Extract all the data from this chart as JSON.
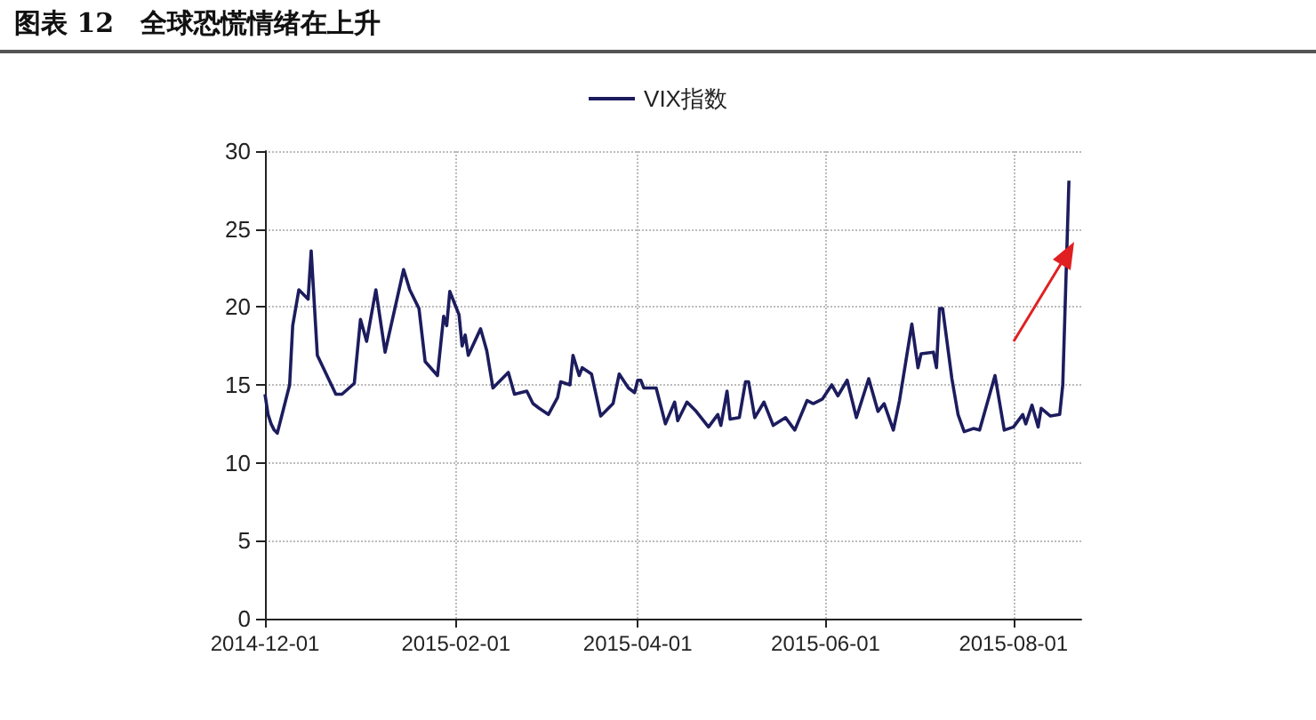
{
  "chart_data": {
    "type": "line",
    "title": "图表 12　全球恐慌情绪在上升",
    "legend": "top",
    "grid": true,
    "marker": "none",
    "line_style": "solid",
    "xlim": [
      "2014-12-01",
      "2015-08-23"
    ],
    "xticks": [
      {
        "value": "2014-12-01",
        "label": "2014-12-01"
      },
      {
        "value": "2015-02-01",
        "label": "2015-02-01"
      },
      {
        "value": "2015-04-01",
        "label": "2015-04-01"
      },
      {
        "value": "2015-06-01",
        "label": "2015-06-01"
      },
      {
        "value": "2015-08-01",
        "label": "2015-08-01"
      }
    ],
    "ylim": [
      0,
      30
    ],
    "yticks": [
      0,
      5,
      10,
      15,
      20,
      25,
      30
    ],
    "x": [
      "2014-12-01",
      "2014-12-02",
      "2014-12-03",
      "2014-12-04",
      "2014-12-05",
      "2014-12-09",
      "2014-12-10",
      "2014-12-12",
      "2014-12-15",
      "2014-12-16",
      "2014-12-18",
      "2014-12-24",
      "2014-12-26",
      "2014-12-30",
      "2015-01-01",
      "2015-01-03",
      "2015-01-06",
      "2015-01-09",
      "2015-01-15",
      "2015-01-17",
      "2015-01-20",
      "2015-01-22",
      "2015-01-26",
      "2015-01-28",
      "2015-01-29",
      "2015-01-30",
      "2015-02-02",
      "2015-02-03",
      "2015-02-04",
      "2015-02-05",
      "2015-02-09",
      "2015-02-11",
      "2015-02-13",
      "2015-02-18",
      "2015-02-20",
      "2015-02-24",
      "2015-02-26",
      "2015-02-28",
      "2015-03-03",
      "2015-03-06",
      "2015-03-07",
      "2015-03-10",
      "2015-03-11",
      "2015-03-13",
      "2015-03-14",
      "2015-03-17",
      "2015-03-20",
      "2015-03-24",
      "2015-03-26",
      "2015-03-29",
      "2015-03-31",
      "2015-04-01",
      "2015-04-02",
      "2015-04-03",
      "2015-04-07",
      "2015-04-10",
      "2015-04-13",
      "2015-04-14",
      "2015-04-17",
      "2015-04-20",
      "2015-04-24",
      "2015-04-27",
      "2015-04-28",
      "2015-04-30",
      "2015-05-01",
      "2015-05-04",
      "2015-05-06",
      "2015-05-07",
      "2015-05-09",
      "2015-05-12",
      "2015-05-15",
      "2015-05-19",
      "2015-05-22",
      "2015-05-26",
      "2015-05-28",
      "2015-05-31",
      "2015-06-03",
      "2015-06-05",
      "2015-06-08",
      "2015-06-11",
      "2015-06-15",
      "2015-06-18",
      "2015-06-20",
      "2015-06-23",
      "2015-06-25",
      "2015-06-29",
      "2015-07-01",
      "2015-07-02",
      "2015-07-06",
      "2015-07-07",
      "2015-07-08",
      "2015-07-09",
      "2015-07-12",
      "2015-07-14",
      "2015-07-16",
      "2015-07-19",
      "2015-07-21",
      "2015-07-26",
      "2015-07-29",
      "2015-08-01",
      "2015-08-04",
      "2015-08-05",
      "2015-08-07",
      "2015-08-09",
      "2015-08-10",
      "2015-08-13",
      "2015-08-16",
      "2015-08-17",
      "2015-08-19"
    ],
    "series": [
      {
        "name": "VIX指数",
        "color": "#1c1c5e",
        "values": [
          14.4,
          13.1,
          12.5,
          12.1,
          11.9,
          15.0,
          18.8,
          21.1,
          20.5,
          23.6,
          16.9,
          14.4,
          14.4,
          15.1,
          19.2,
          17.8,
          21.1,
          17.1,
          22.4,
          21.1,
          19.9,
          16.5,
          15.6,
          19.4,
          18.8,
          21.0,
          19.5,
          17.5,
          18.2,
          16.9,
          18.6,
          17.2,
          14.8,
          15.8,
          14.4,
          14.6,
          13.8,
          13.5,
          13.1,
          14.2,
          15.2,
          15.0,
          16.9,
          15.6,
          16.1,
          15.7,
          13.0,
          13.8,
          15.7,
          14.8,
          14.5,
          15.3,
          15.3,
          14.8,
          14.8,
          12.5,
          13.9,
          12.7,
          13.9,
          13.3,
          12.3,
          13.1,
          12.4,
          14.6,
          12.8,
          12.9,
          15.2,
          15.2,
          12.9,
          13.9,
          12.4,
          12.9,
          12.1,
          14.0,
          13.8,
          14.1,
          15.0,
          14.3,
          15.3,
          12.9,
          15.4,
          13.3,
          13.8,
          12.1,
          14.0,
          18.9,
          16.1,
          17.0,
          17.1,
          16.1,
          19.9,
          19.9,
          15.4,
          13.1,
          12.0,
          12.2,
          12.1,
          15.6,
          12.1,
          12.3,
          13.1,
          12.5,
          13.7,
          12.3,
          13.5,
          13.0,
          13.1,
          15.0,
          28.1
        ]
      }
    ]
  }
}
